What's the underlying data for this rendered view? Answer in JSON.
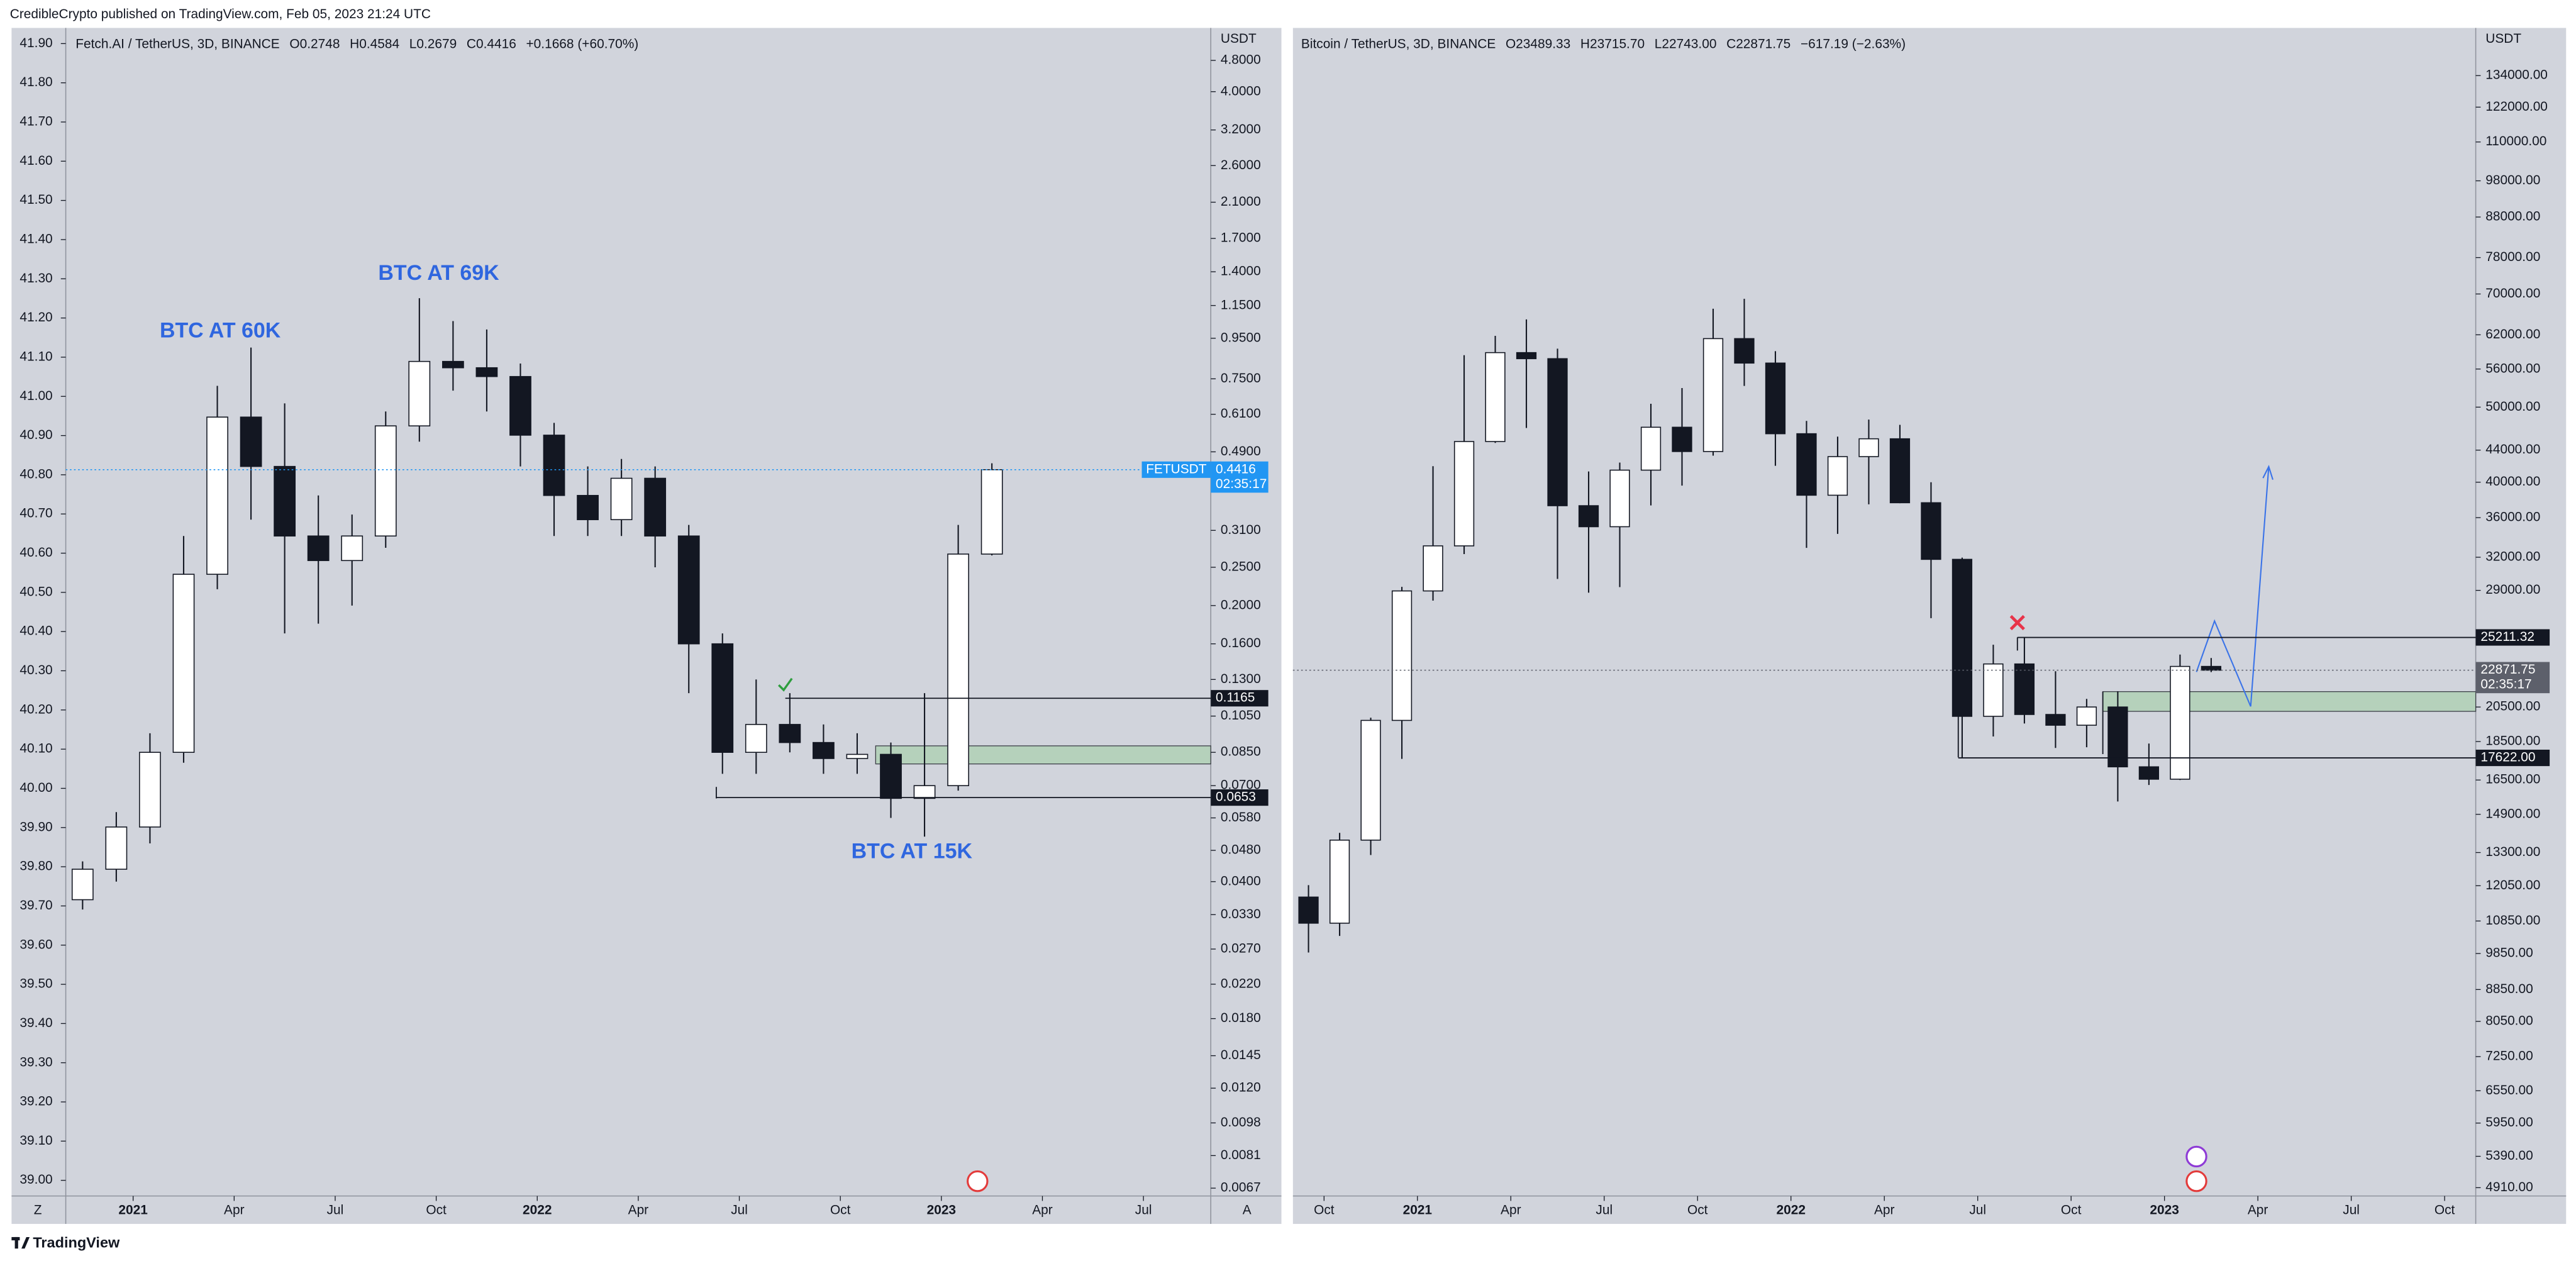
{
  "header": "CredibleCrypto published on TradingView.com, Feb 05, 2023 21:24 UTC",
  "footer": "TradingView",
  "chart_data": [
    {
      "type": "candlestick",
      "legend": {
        "symbol": "Fetch.AI / TetherUS, 3D, BINANCE",
        "values": [
          "O0.2748",
          "H0.4584",
          "L0.2679",
          "C0.4416",
          "+0.1668 (+60.70%)"
        ]
      },
      "currency": "USDT",
      "corner_labels": [
        "Z",
        "A"
      ],
      "annotations": [
        "BTC AT 60K",
        "BTC AT 69K",
        "BTC AT 15K"
      ],
      "annotation_color": "#2f66df",
      "log_scale": true,
      "x": [
        "2020-11",
        "2020-12",
        "2021-01",
        "2021-02",
        "2021-03",
        "2021-04",
        "2021-05",
        "2021-06",
        "2021-07",
        "2021-08",
        "2021-09",
        "2021-10",
        "2021-11",
        "2021-12",
        "2022-01",
        "2022-02",
        "2022-03",
        "2022-04",
        "2022-05",
        "2022-06",
        "2022-07",
        "2022-08",
        "2022-09",
        "2022-10",
        "2022-11",
        "2022-12",
        "2023-01",
        "2023-02"
      ],
      "series": [
        {
          "name": "FETUSDT",
          "color": "#131722",
          "up_color": "#ffffff",
          "open": [
            0.036,
            0.043,
            0.055,
            0.085,
            0.24,
            0.6,
            0.45,
            0.3,
            0.26,
            0.3,
            0.57,
            0.83,
            0.8,
            0.76,
            0.54,
            0.38,
            0.33,
            0.42,
            0.3,
            0.16,
            0.085,
            0.1,
            0.09,
            0.082,
            0.084,
            0.065,
            0.07,
            0.27
          ],
          "high": [
            0.045,
            0.06,
            0.095,
            0.3,
            0.72,
            0.9,
            0.65,
            0.38,
            0.34,
            0.62,
            1.2,
            1.05,
            1.0,
            0.82,
            0.58,
            0.45,
            0.47,
            0.45,
            0.32,
            0.17,
            0.13,
            0.12,
            0.1,
            0.095,
            0.09,
            0.12,
            0.32,
            0.4584
          ],
          "low": [
            0.034,
            0.04,
            0.05,
            0.08,
            0.22,
            0.33,
            0.17,
            0.18,
            0.2,
            0.28,
            0.52,
            0.7,
            0.62,
            0.45,
            0.3,
            0.3,
            0.3,
            0.25,
            0.12,
            0.075,
            0.075,
            0.085,
            0.075,
            0.075,
            0.058,
            0.052,
            0.068,
            0.2679
          ],
          "close": [
            0.043,
            0.055,
            0.085,
            0.24,
            0.6,
            0.45,
            0.3,
            0.26,
            0.3,
            0.57,
            0.83,
            0.8,
            0.76,
            0.54,
            0.38,
            0.33,
            0.42,
            0.3,
            0.16,
            0.085,
            0.1,
            0.09,
            0.082,
            0.084,
            0.065,
            0.07,
            0.27,
            0.4416
          ]
        }
      ],
      "last_price": 0.4416,
      "last_price_color": "#2196f3",
      "countdown": "02:35:17",
      "levels": [
        0.1165,
        0.0653
      ],
      "xlim": [
        "2020-11",
        "2023-09"
      ],
      "xticks": [
        {
          "value": "2021-01",
          "label": "2021"
        },
        {
          "value": "2021-04",
          "label": "Apr"
        },
        {
          "value": "2021-07",
          "label": "Jul"
        },
        {
          "value": "2021-10",
          "label": "Oct"
        },
        {
          "value": "2022-01",
          "label": "2022"
        },
        {
          "value": "2022-04",
          "label": "Apr"
        },
        {
          "value": "2022-07",
          "label": "Jul"
        },
        {
          "value": "2022-10",
          "label": "Oct"
        },
        {
          "value": "2023-01",
          "label": "2023"
        },
        {
          "value": "2023-04",
          "label": "Apr"
        },
        {
          "value": "2023-07",
          "label": "Jul"
        }
      ],
      "ylim": [
        0.0064,
        5.8
      ],
      "yticks": [
        {
          "value": 4.8,
          "label": "4.8000"
        },
        {
          "value": 4,
          "label": "4.0000"
        },
        {
          "value": 3.2,
          "label": "3.2000"
        },
        {
          "value": 2.6,
          "label": "2.6000"
        },
        {
          "value": 2.1,
          "label": "2.1000"
        },
        {
          "value": 1.7,
          "label": "1.7000"
        },
        {
          "value": 1.4,
          "label": "1.4000"
        },
        {
          "value": 1.15,
          "label": "1.1500"
        },
        {
          "value": 0.95,
          "label": "0.9500"
        },
        {
          "value": 0.75,
          "label": "0.7500"
        },
        {
          "value": 0.61,
          "label": "0.6100"
        },
        {
          "value": 0.49,
          "label": "0.4900"
        },
        {
          "value": 0.31,
          "label": "0.3100"
        },
        {
          "value": 0.25,
          "label": "0.2500"
        },
        {
          "value": 0.2,
          "label": "0.2000"
        },
        {
          "value": 0.16,
          "label": "0.1600"
        },
        {
          "value": 0.13,
          "label": "0.1300"
        },
        {
          "value": 0.105,
          "label": "0.1050"
        },
        {
          "value": 0.085,
          "label": "0.0850"
        },
        {
          "value": 0.07,
          "label": "0.0700"
        },
        {
          "value": 0.058,
          "label": "0.0580"
        },
        {
          "value": 0.048,
          "label": "0.0480"
        },
        {
          "value": 0.04,
          "label": "0.0400"
        },
        {
          "value": 0.033,
          "label": "0.0330"
        },
        {
          "value": 0.027,
          "label": "0.0270"
        },
        {
          "value": 0.022,
          "label": "0.0220"
        },
        {
          "value": 0.018,
          "label": "0.0180"
        },
        {
          "value": 0.0145,
          "label": "0.0145"
        },
        {
          "value": 0.012,
          "label": "0.0120"
        },
        {
          "value": 0.0098,
          "label": "0.0098"
        },
        {
          "value": 0.0081,
          "label": "0.0081"
        },
        {
          "value": 0.0067,
          "label": "0.0067"
        }
      ],
      "y2_position": "left",
      "y2lim": [
        38.96,
        41.94
      ],
      "y2ticks": [
        {
          "value": 39,
          "label": "39.00"
        },
        {
          "value": 39.1,
          "label": "39.10"
        },
        {
          "value": 39.2,
          "label": "39.20"
        },
        {
          "value": 39.3,
          "label": "39.30"
        },
        {
          "value": 39.4,
          "label": "39.40"
        },
        {
          "value": 39.5,
          "label": "39.50"
        },
        {
          "value": 39.6,
          "label": "39.60"
        },
        {
          "value": 39.7,
          "label": "39.70"
        },
        {
          "value": 39.8,
          "label": "39.80"
        },
        {
          "value": 39.9,
          "label": "39.90"
        },
        {
          "value": 40,
          "label": "40.00"
        },
        {
          "value": 40.1,
          "label": "40.10"
        },
        {
          "value": 40.2,
          "label": "40.20"
        },
        {
          "value": 40.3,
          "label": "40.30"
        },
        {
          "value": 40.4,
          "label": "40.40"
        },
        {
          "value": 40.5,
          "label": "40.50"
        },
        {
          "value": 40.6,
          "label": "40.60"
        },
        {
          "value": 40.7,
          "label": "40.70"
        },
        {
          "value": 40.8,
          "label": "40.80"
        },
        {
          "value": 40.9,
          "label": "40.90"
        },
        {
          "value": 41,
          "label": "41.00"
        },
        {
          "value": 41.1,
          "label": "41.10"
        },
        {
          "value": 41.2,
          "label": "41.20"
        },
        {
          "value": 41.3,
          "label": "41.30"
        },
        {
          "value": 41.4,
          "label": "41.40"
        },
        {
          "value": 41.5,
          "label": "41.50"
        },
        {
          "value": 41.6,
          "label": "41.60"
        },
        {
          "value": 41.7,
          "label": "41.70"
        },
        {
          "value": 41.8,
          "label": "41.80"
        },
        {
          "value": 41.9,
          "label": "41.90"
        }
      ]
    },
    {
      "type": "candlestick",
      "legend": {
        "symbol": "Bitcoin / TetherUS, 3D, BINANCE",
        "values": [
          "O23489.33",
          "H23715.70",
          "L22743.00",
          "C22871.75",
          "−617.19 (−2.63%)"
        ]
      },
      "currency": "USDT",
      "log_scale": true,
      "x": [
        "2020-09",
        "2020-10",
        "2020-11",
        "2020-12",
        "2021-01",
        "2021-02",
        "2021-03",
        "2021-04",
        "2021-05",
        "2021-06",
        "2021-07",
        "2021-08",
        "2021-09",
        "2021-10",
        "2021-11",
        "2021-12",
        "2022-01",
        "2022-02",
        "2022-03",
        "2022-04",
        "2022-05",
        "2022-06",
        "2022-07",
        "2022-08",
        "2022-09",
        "2022-10",
        "2022-11",
        "2022-12",
        "2023-01",
        "2023-02"
      ],
      "series": [
        {
          "color": "#131722",
          "up_color": "#ffffff",
          "open": [
            11650,
            10780,
            13800,
            19700,
            28950,
            33100,
            45140,
            58800,
            57750,
            37300,
            35040,
            41460,
            47100,
            43820,
            61300,
            57000,
            46200,
            38480,
            43160,
            45510,
            37630,
            31800,
            19940,
            23300,
            20050,
            19420,
            20500,
            17160,
            16540,
            23130
          ],
          "high": [
            12070,
            14100,
            19860,
            29300,
            41950,
            58350,
            61800,
            64900,
            59500,
            41300,
            42400,
            50500,
            52920,
            67000,
            69000,
            59050,
            47990,
            45800,
            48190,
            47440,
            40000,
            31960,
            24670,
            25210,
            22800,
            21000,
            21480,
            18390,
            23960,
            23715.7
          ],
          "low": [
            9880,
            10380,
            13200,
            17570,
            28130,
            32300,
            44950,
            47000,
            30000,
            28800,
            29280,
            37330,
            39600,
            43280,
            53250,
            42000,
            32900,
            34300,
            37450,
            37580,
            26700,
            17620,
            18780,
            19520,
            18150,
            18190,
            15480,
            16260,
            16500,
            22743
          ],
          "close": [
            10780,
            13800,
            19700,
            28950,
            33100,
            45140,
            58800,
            57750,
            37300,
            35040,
            41460,
            47100,
            43820,
            61300,
            57000,
            46200,
            38480,
            43160,
            45510,
            37630,
            31800,
            19940,
            23300,
            20050,
            19420,
            20500,
            17160,
            16540,
            23130,
            22871.75
          ]
        }
      ],
      "last_price": 22871.75,
      "last_price_color": "#5d606b",
      "countdown": "02:35:17",
      "levels": [
        25211.32,
        {
          "value": 17622,
          "label": "17622.00"
        }
      ],
      "xlim": [
        "2020-09",
        "2023-11"
      ],
      "xticks": [
        {
          "value": "2020-10",
          "label": "Oct"
        },
        {
          "value": "2021-01",
          "label": "2021"
        },
        {
          "value": "2021-04",
          "label": "Apr"
        },
        {
          "value": "2021-07",
          "label": "Jul"
        },
        {
          "value": "2021-10",
          "label": "Oct"
        },
        {
          "value": "2022-01",
          "label": "2022"
        },
        {
          "value": "2022-04",
          "label": "Apr"
        },
        {
          "value": "2022-07",
          "label": "Jul"
        },
        {
          "value": "2022-10",
          "label": "Oct"
        },
        {
          "value": "2023-01",
          "label": "2023"
        },
        {
          "value": "2023-04",
          "label": "Apr"
        },
        {
          "value": "2023-07",
          "label": "Jul"
        },
        {
          "value": "2023-10",
          "label": "Oct"
        }
      ],
      "ylim": [
        4790,
        154400
      ],
      "yticks": [
        {
          "value": 134000,
          "label": "134000.00"
        },
        {
          "value": 122000,
          "label": "122000.00"
        },
        {
          "value": 110000,
          "label": "110000.00"
        },
        {
          "value": 98000,
          "label": "98000.00"
        },
        {
          "value": 88000,
          "label": "88000.00"
        },
        {
          "value": 78000,
          "label": "78000.00"
        },
        {
          "value": 70000,
          "label": "70000.00"
        },
        {
          "value": 62000,
          "label": "62000.00"
        },
        {
          "value": 56000,
          "label": "56000.00"
        },
        {
          "value": 50000,
          "label": "50000.00"
        },
        {
          "value": 44000,
          "label": "44000.00"
        },
        {
          "value": 40000,
          "label": "40000.00"
        },
        {
          "value": 36000,
          "label": "36000.00"
        },
        {
          "value": 32000,
          "label": "32000.00"
        },
        {
          "value": 29000,
          "label": "29000.00"
        },
        {
          "value": 20500,
          "label": "20500.00"
        },
        {
          "value": 18500,
          "label": "18500.00"
        },
        {
          "value": 16500,
          "label": "16500.00"
        },
        {
          "value": 14900,
          "label": "14900.00"
        },
        {
          "value": 13300,
          "label": "13300.00"
        },
        {
          "value": 12050,
          "label": "12050.00"
        },
        {
          "value": 10850,
          "label": "10850.00"
        },
        {
          "value": 9850,
          "label": "9850.00"
        },
        {
          "value": 8850,
          "label": "8850.00"
        },
        {
          "value": 8050,
          "label": "8050.00"
        },
        {
          "value": 7250,
          "label": "7250.00"
        },
        {
          "value": 6550,
          "label": "6550.00"
        },
        {
          "value": 5950,
          "label": "5950.00"
        },
        {
          "value": 5390,
          "label": "5390.00"
        },
        {
          "value": 4910,
          "label": "4910.00"
        }
      ]
    }
  ]
}
